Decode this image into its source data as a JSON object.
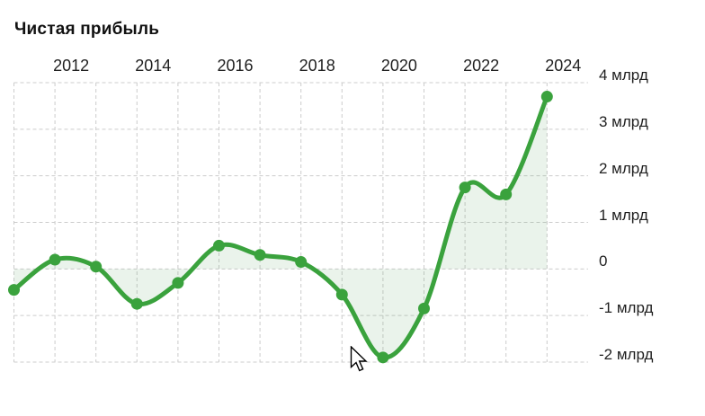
{
  "page": {
    "title": "Чистая прибыль"
  },
  "chart_data": {
    "type": "line",
    "title": "Чистая прибыль",
    "unit": "млрд",
    "x": [
      2011,
      2012,
      2013,
      2014,
      2015,
      2016,
      2017,
      2018,
      2019,
      2020,
      2021,
      2022,
      2023,
      2024
    ],
    "values": [
      -0.45,
      0.2,
      0.05,
      -0.75,
      -0.3,
      0.5,
      0.3,
      0.15,
      -0.55,
      -1.9,
      -0.85,
      1.75,
      1.6,
      3.7
    ],
    "x_tick_years": [
      2012,
      2014,
      2016,
      2018,
      2020,
      2022,
      2024
    ],
    "x_tick_labels": [
      "2012",
      "2014",
      "2016",
      "2018",
      "2020",
      "2022",
      "2024"
    ],
    "y_ticks": [
      {
        "value": 4,
        "label": "4 млрд"
      },
      {
        "value": 3,
        "label": "3 млрд"
      },
      {
        "value": 2,
        "label": "2 млрд"
      },
      {
        "value": 1,
        "label": "1 млрд"
      },
      {
        "value": 0,
        "label": "0"
      },
      {
        "value": -1,
        "label": "-1 млрд"
      },
      {
        "value": -2,
        "label": "-2 млрд"
      }
    ],
    "ylim": [
      -2,
      4
    ],
    "xlim": [
      2011,
      2024
    ],
    "grid": "dashed",
    "legend": "none",
    "fill_to_zero": true,
    "colors": {
      "line": "#3aa23d",
      "marker": "#3aa23d",
      "fill": "rgba(105, 170, 110, 0.14)",
      "gridline": "#cccccc",
      "text": "#1f1f1f"
    }
  }
}
